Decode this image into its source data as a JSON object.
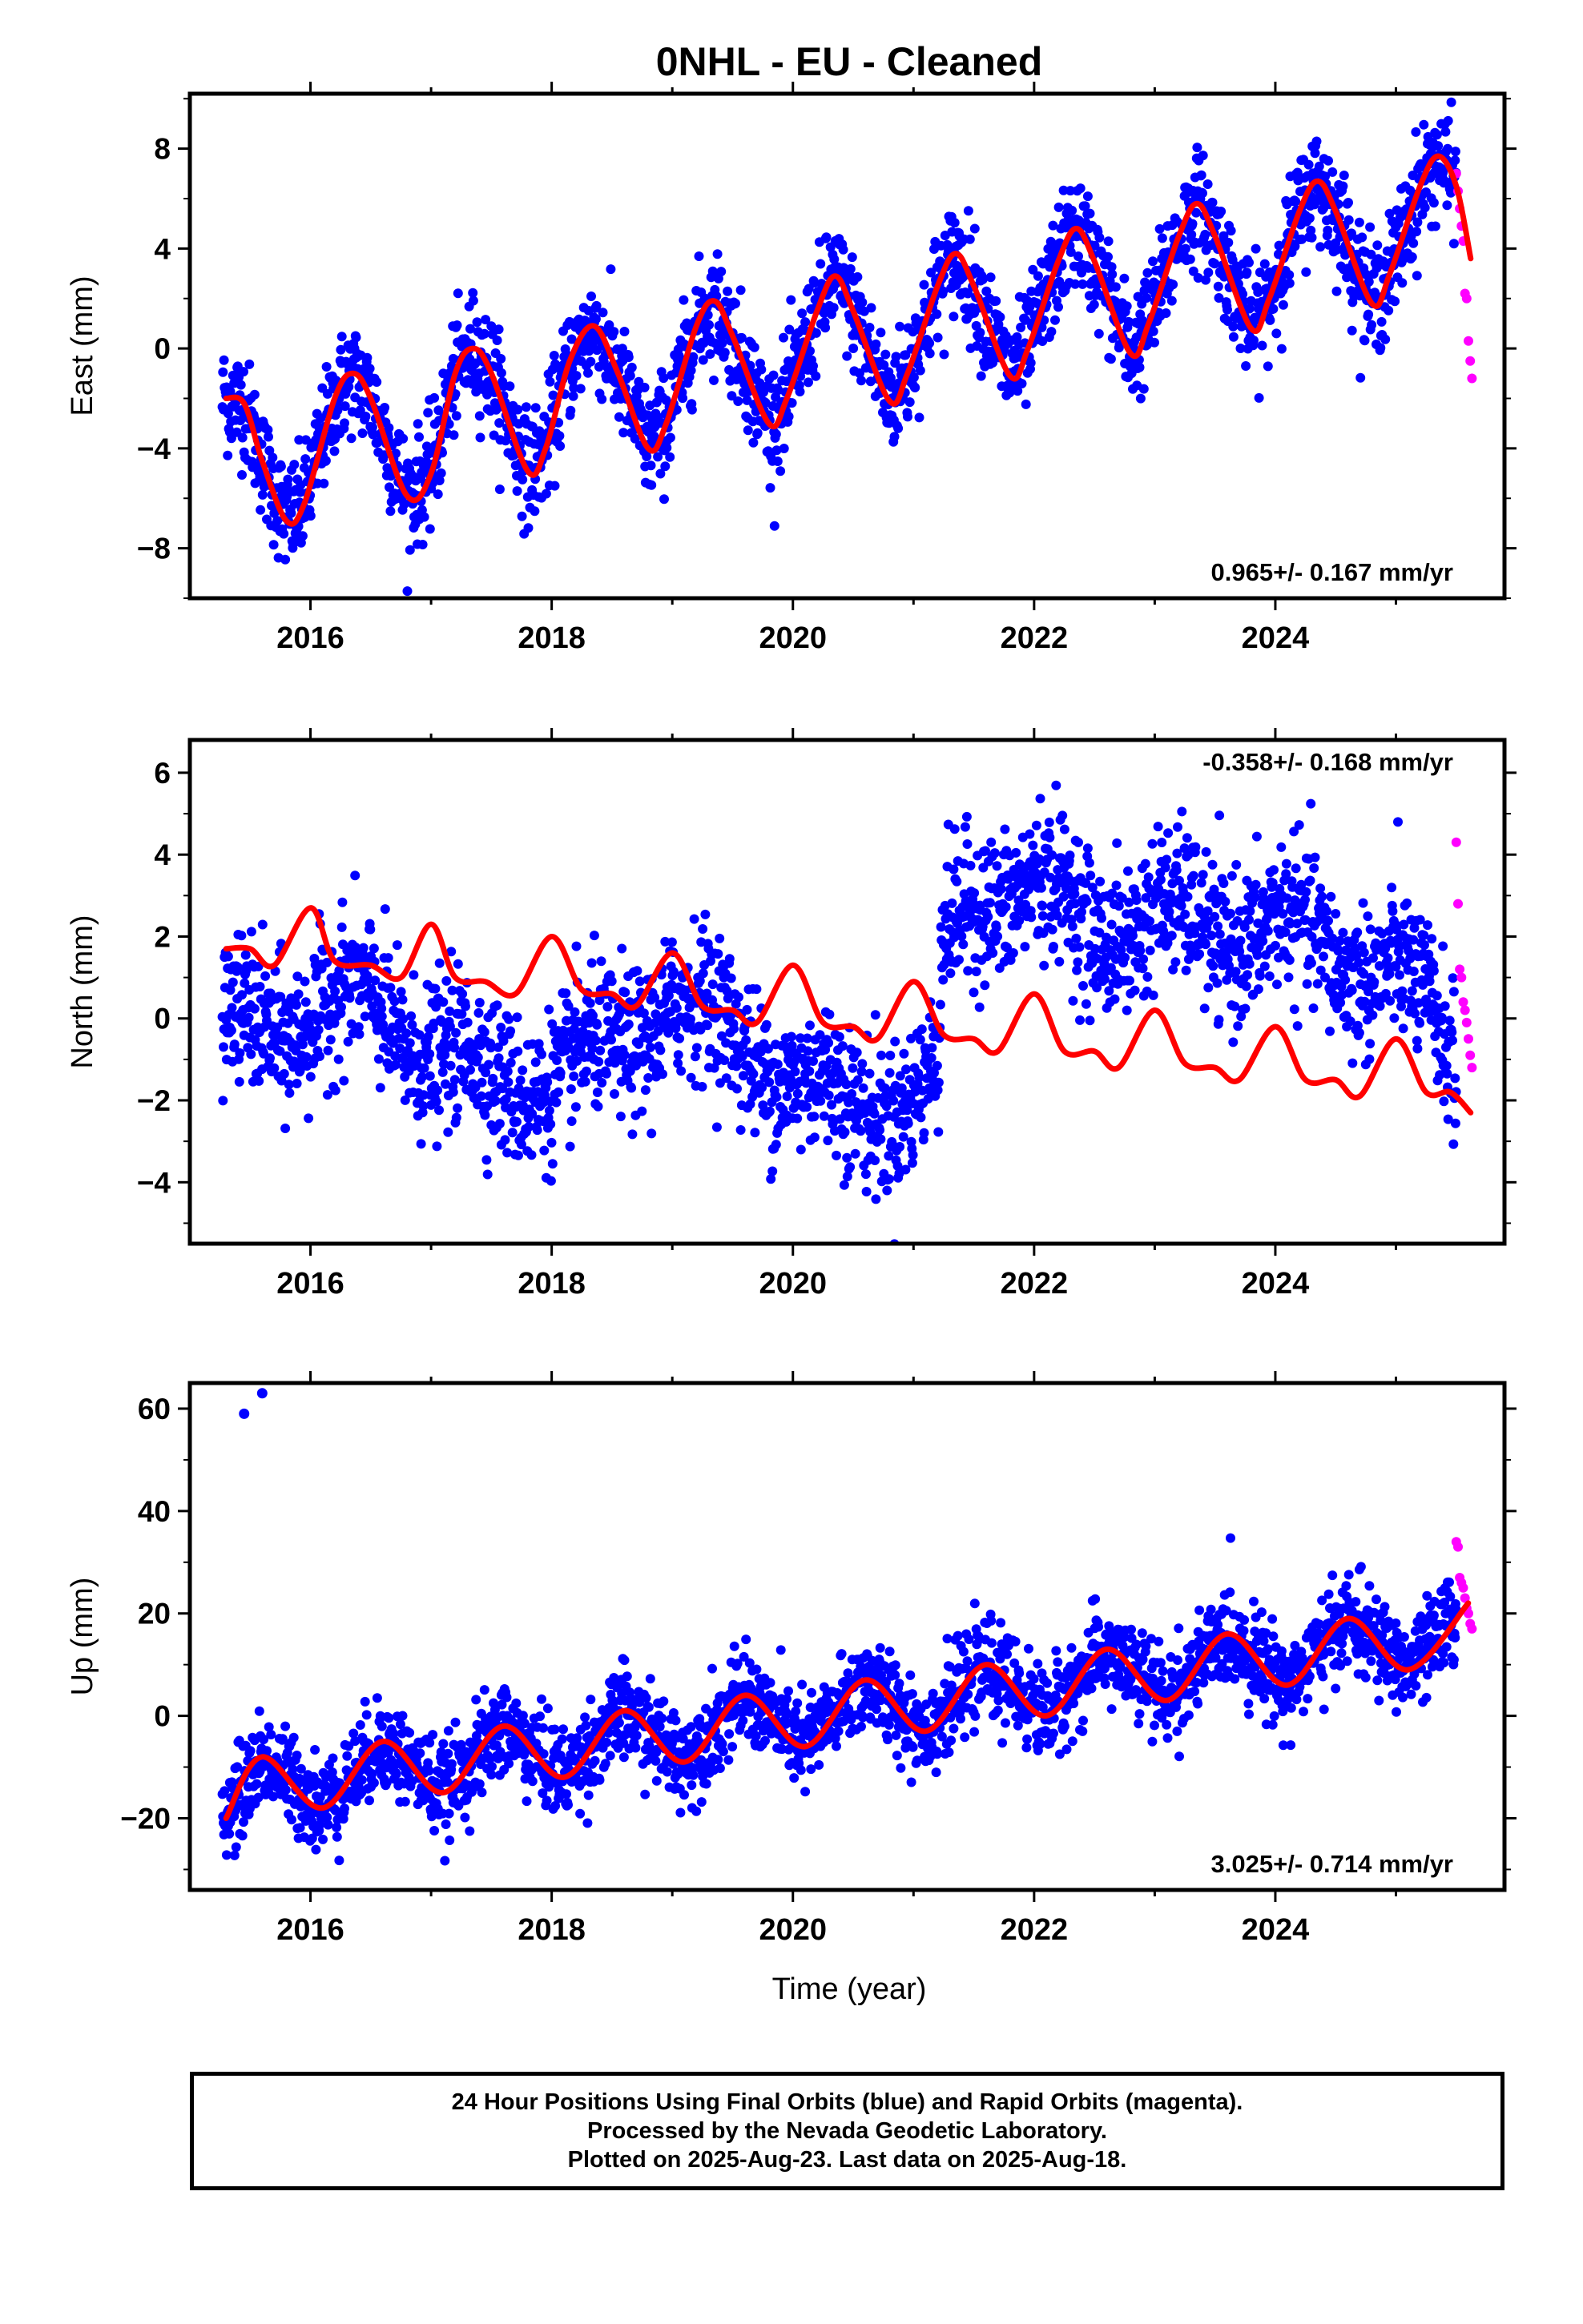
{
  "title": "0NHL  - EU - Cleaned",
  "colors": {
    "final_orbits": "#0000ff",
    "rapid_orbits": "#ff00ff",
    "model_fit": "#ff0000",
    "frame": "#000000"
  },
  "xlabel": "Time (year)",
  "caption": {
    "line1": "24 Hour Positions Using Final Orbits (blue) and Rapid Orbits (magenta).",
    "line2": "Processed by the Nevada Geodetic Laboratory.",
    "line3": "Plotted on 2025-Aug-23. Last data on 2025-Aug-18."
  },
  "chart_data": [
    {
      "type": "scatter",
      "component": "East",
      "ylabel": "East (mm)",
      "xlim": [
        2015.0,
        2025.9
      ],
      "ylim": [
        -10,
        10.2
      ],
      "yticks": [
        -8,
        -4,
        0,
        4,
        8
      ],
      "xticks": [
        2016,
        2018,
        2020,
        2022,
        2024
      ],
      "rate_label": "0.965+/- 0.167 mm/yr",
      "rate_position": "bottom-right",
      "series": [
        {
          "name": "Final Orbits (blue)",
          "role": "daily",
          "x_start": 2015.27,
          "x_end": 2025.5,
          "spread": 1.1
        },
        {
          "name": "Rapid Orbits (magenta)",
          "role": "rapid",
          "x_start": 2025.5,
          "x_end": 2025.63,
          "values": [
            7.0,
            6.3,
            5.6,
            4.9,
            4.3,
            2.2,
            2.0,
            0.3,
            -0.5,
            -1.2
          ]
        }
      ],
      "model": {
        "x": [
          2015.3,
          2015.45,
          2015.6,
          2015.8,
          2015.95,
          2016.2,
          2016.35,
          2016.5,
          2016.8,
          2017.0,
          2017.2,
          2017.35,
          2017.5,
          2017.8,
          2017.95,
          2018.15,
          2018.35,
          2018.55,
          2018.8,
          2018.95,
          2019.2,
          2019.35,
          2019.5,
          2019.8,
          2019.95,
          2020.2,
          2020.35,
          2020.5,
          2020.8,
          2020.95,
          2021.2,
          2021.35,
          2021.5,
          2021.8,
          2021.95,
          2022.2,
          2022.35,
          2022.5,
          2022.8,
          2022.95,
          2023.2,
          2023.35,
          2023.5,
          2023.8,
          2023.95,
          2024.2,
          2024.35,
          2024.5,
          2024.8,
          2024.95,
          2025.2,
          2025.35,
          2025.5,
          2025.62
        ],
        "y": [
          -2.0,
          -2.2,
          -4.5,
          -6.9,
          -6.2,
          -2.0,
          -1.0,
          -2.0,
          -5.9,
          -5.0,
          -1.0,
          0.0,
          -1.0,
          -4.9,
          -4.0,
          -0.5,
          0.9,
          -1.0,
          -4.0,
          -3.0,
          0.9,
          1.9,
          0.5,
          -3.0,
          -2.0,
          1.5,
          2.9,
          1.5,
          -2.1,
          -1.0,
          2.5,
          3.8,
          2.5,
          -1.1,
          0.0,
          3.5,
          4.8,
          3.5,
          -0.2,
          1.0,
          4.5,
          5.8,
          4.5,
          0.8,
          2.0,
          5.5,
          6.7,
          5.5,
          1.8,
          3.0,
          6.5,
          7.7,
          6.5,
          3.6
        ]
      }
    },
    {
      "type": "scatter",
      "component": "North",
      "ylabel": "North (mm)",
      "xlim": [
        2015.0,
        2025.9
      ],
      "ylim": [
        -5.5,
        6.8
      ],
      "yticks": [
        -4,
        -2,
        0,
        2,
        4,
        6
      ],
      "xticks": [
        2016,
        2018,
        2020,
        2022,
        2024
      ],
      "rate_label": "-0.358+/- 0.168 mm/yr",
      "rate_position": "top-right",
      "series": [
        {
          "name": "Final Orbits (blue)",
          "role": "daily",
          "x_start": 2015.27,
          "x_end": 2025.5,
          "spread": 0.9
        },
        {
          "name": "Rapid Orbits (magenta)",
          "role": "rapid",
          "x_start": 2025.5,
          "x_end": 2025.63,
          "values": [
            4.3,
            2.8,
            1.2,
            1.0,
            0.4,
            0.2,
            -0.1,
            -0.5,
            -0.9,
            -1.2
          ]
        }
      ],
      "model": {
        "x": [
          2015.3,
          2015.5,
          2015.7,
          2016.0,
          2016.2,
          2016.5,
          2016.75,
          2017.0,
          2017.2,
          2017.45,
          2017.7,
          2018.0,
          2018.25,
          2018.5,
          2018.7,
          2019.0,
          2019.25,
          2019.5,
          2019.7,
          2020.0,
          2020.25,
          2020.5,
          2020.7,
          2021.0,
          2021.25,
          2021.5,
          2021.7,
          2022.0,
          2022.25,
          2022.5,
          2022.7,
          2023.0,
          2023.25,
          2023.5,
          2023.7,
          2024.0,
          2024.25,
          2024.5,
          2024.7,
          2025.0,
          2025.25,
          2025.45,
          2025.62
        ],
        "y": [
          1.7,
          1.7,
          1.3,
          2.7,
          1.4,
          1.3,
          1.0,
          2.3,
          1.0,
          0.9,
          0.6,
          2.0,
          0.7,
          0.6,
          0.3,
          1.6,
          0.3,
          0.2,
          -0.1,
          1.3,
          -0.1,
          -0.2,
          -0.5,
          0.9,
          -0.4,
          -0.5,
          -0.8,
          0.6,
          -0.8,
          -0.8,
          -1.2,
          0.2,
          -1.1,
          -1.2,
          -1.5,
          -0.2,
          -1.5,
          -1.5,
          -1.9,
          -0.5,
          -1.8,
          -1.8,
          -2.3
        ]
      },
      "step": {
        "at": 2021.22,
        "before_mean": [
          [
            2015.3,
            -0.4
          ],
          [
            2016.0,
            0.2
          ],
          [
            2016.5,
            0.3
          ],
          [
            2017.5,
            -1.6
          ],
          [
            2018.5,
            -1.0
          ],
          [
            2019.0,
            0.7
          ],
          [
            2019.5,
            -0.6
          ],
          [
            2020.0,
            -1.2
          ],
          [
            2020.5,
            -2.5
          ],
          [
            2021.2,
            -1.2
          ]
        ],
        "after_mean": [
          [
            2021.25,
            1.6
          ],
          [
            2022.0,
            3.9
          ],
          [
            2022.5,
            1.5
          ],
          [
            2023.0,
            3.2
          ],
          [
            2023.5,
            1.4
          ],
          [
            2024.0,
            3.0
          ],
          [
            2024.5,
            0.8
          ],
          [
            2025.0,
            2.0
          ],
          [
            2025.5,
            -1.8
          ]
        ]
      }
    },
    {
      "type": "scatter",
      "component": "Up",
      "ylabel": "Up (mm)",
      "xlim": [
        2015.0,
        2025.9
      ],
      "ylim": [
        -34,
        65
      ],
      "yticks": [
        -20,
        0,
        20,
        40,
        60
      ],
      "xticks": [
        2016,
        2018,
        2020,
        2022,
        2024
      ],
      "rate_label": "3.025+/- 0.714 mm/yr",
      "rate_position": "bottom-right",
      "outliers": [
        [
          2015.45,
          59
        ],
        [
          2015.6,
          63
        ]
      ],
      "series": [
        {
          "name": "Final Orbits (blue)",
          "role": "daily",
          "x_start": 2015.27,
          "x_end": 2025.5,
          "spread": 4.5
        },
        {
          "name": "Rapid Orbits (magenta)",
          "role": "rapid",
          "x_start": 2025.5,
          "x_end": 2025.63,
          "values": [
            34,
            33,
            27,
            26,
            25,
            23,
            21,
            20,
            18,
            17
          ]
        }
      ],
      "model": {
        "x": [
          2015.3,
          2015.6,
          2016.1,
          2016.6,
          2017.1,
          2017.6,
          2018.1,
          2018.6,
          2019.1,
          2019.6,
          2020.1,
          2020.6,
          2021.1,
          2021.6,
          2022.1,
          2022.6,
          2023.1,
          2023.6,
          2024.1,
          2024.6,
          2025.1,
          2025.6
        ],
        "y": [
          -20,
          -8,
          -18,
          -5,
          -15,
          -2,
          -12,
          1,
          -9,
          4,
          -6,
          7,
          -3,
          10,
          0,
          13,
          3,
          16,
          6,
          19,
          9,
          22
        ]
      }
    }
  ]
}
